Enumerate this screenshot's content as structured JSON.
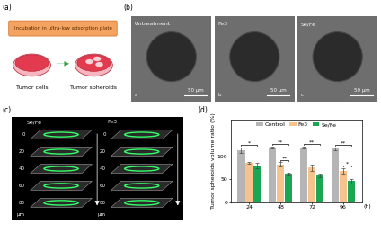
{
  "panel_a": {
    "label": "(a)",
    "banner": "Incubation in ultra-low adsorption plate",
    "left_caption": "Tumor cells",
    "right_caption": "Tumor spheroids"
  },
  "panel_b": {
    "label": "(b)",
    "images": [
      {
        "title": "Untreatment",
        "letter": "a",
        "scale_bar": "50 μm"
      },
      {
        "title": "Fe3",
        "letter": "b",
        "scale_bar": "50 μm"
      },
      {
        "title": "Se/Fe",
        "letter": "c",
        "scale_bar": "50 μm"
      }
    ]
  },
  "panel_c": {
    "label": "(c)",
    "stacks": [
      "Se/Fe",
      "Fe3"
    ],
    "depths": [
      0,
      20,
      40,
      60,
      80
    ],
    "unit": "μm"
  },
  "chart_data": {
    "type": "bar",
    "panel_label": "(d)",
    "categories": [
      "24",
      "48",
      "72",
      "96"
    ],
    "xlabel": "(h)",
    "ylabel": "Tumor spheroids volume ratio (%)",
    "ylim": [
      0,
      180
    ],
    "yticks": [
      0,
      50,
      100
    ],
    "legend": "upper center",
    "series": [
      {
        "name": "Control",
        "color": "#b5b5b5",
        "values": [
          113,
          119,
          119,
          116
        ],
        "errors": [
          6,
          2,
          2,
          3
        ]
      },
      {
        "name": "Fe3",
        "color": "#f6c28e",
        "values": [
          86,
          82,
          75,
          68
        ],
        "errors": [
          2,
          5,
          6,
          6
        ]
      },
      {
        "name": "Se/Fe",
        "color": "#1aa653",
        "values": [
          79,
          62,
          58,
          46
        ],
        "errors": [
          6,
          3,
          4,
          5
        ]
      }
    ],
    "annotations": [
      {
        "category": "24",
        "from": "Control",
        "to": "Se/Fe",
        "text": "*"
      },
      {
        "category": "48",
        "from": "Control",
        "to": "Se/Fe",
        "text": "**"
      },
      {
        "category": "48",
        "from": "Fe3",
        "to": "Se/Fe",
        "text": "**"
      },
      {
        "category": "72",
        "from": "Control",
        "to": "Se/Fe",
        "text": "**"
      },
      {
        "category": "96",
        "from": "Control",
        "to": "Se/Fe",
        "text": "**"
      },
      {
        "category": "96",
        "from": "Fe3",
        "to": "Se/Fe",
        "text": "*"
      }
    ]
  }
}
